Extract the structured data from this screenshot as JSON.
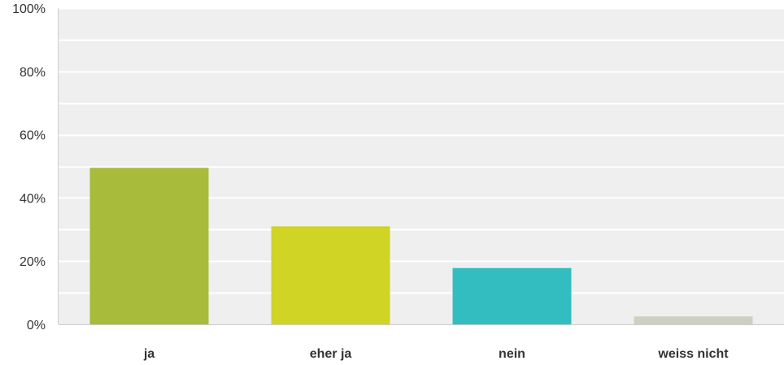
{
  "chart_data": {
    "type": "bar",
    "title": "",
    "xlabel": "",
    "ylabel": "",
    "categories": [
      "ja",
      "eher ja",
      "nein",
      "weiss nicht"
    ],
    "values": [
      49.5,
      31,
      17.8,
      2.5
    ],
    "colors": [
      "#a9bb3a",
      "#cfd425",
      "#34bdc1",
      "#cfcfbf"
    ],
    "ylim": [
      0,
      100
    ],
    "y_ticks": [
      {
        "value": 0,
        "label": "0%"
      },
      {
        "value": 20,
        "label": "20%"
      },
      {
        "value": 40,
        "label": "40%"
      },
      {
        "value": 60,
        "label": "60%"
      },
      {
        "value": 80,
        "label": "80%"
      },
      {
        "value": 100,
        "label": "100%"
      }
    ],
    "minor_gridlines": [
      10,
      30,
      50,
      70,
      90
    ],
    "grid": true,
    "legend": "none",
    "plot_background": "#efefef",
    "gridline_color": "#ffffff"
  }
}
